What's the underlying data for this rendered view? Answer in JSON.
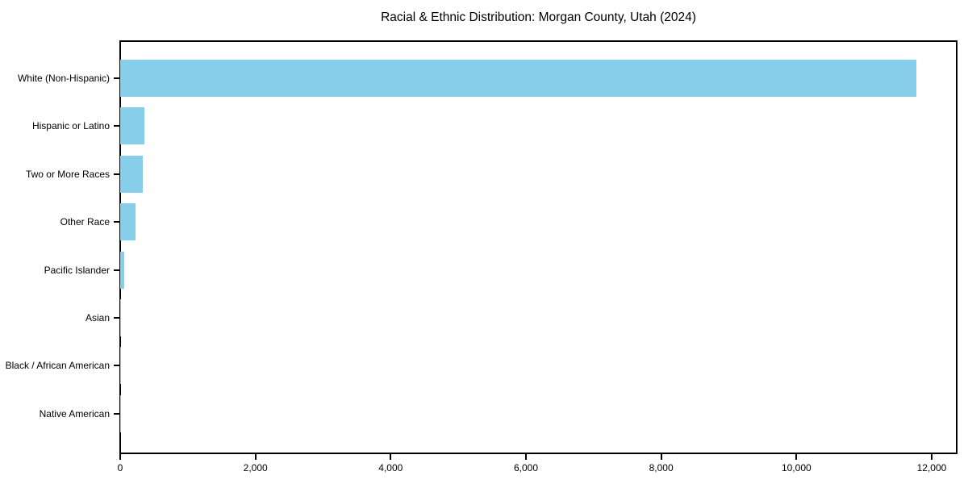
{
  "chart_data": {
    "type": "bar",
    "orientation": "horizontal",
    "title": "Racial & Ethnic Distribution: Morgan County, Utah (2024)",
    "categories": [
      "White (Non-Hispanic)",
      "Hispanic or Latino",
      "Two or More Races",
      "Other Race",
      "Pacific Islander",
      "Asian",
      "Black / African American",
      "Native American"
    ],
    "values": [
      11775,
      360,
      330,
      230,
      55,
      15,
      5,
      3
    ],
    "xlabel": "",
    "ylabel": "",
    "xlim": [
      0,
      12370
    ],
    "x_ticks": [
      0,
      2000,
      4000,
      6000,
      8000,
      10000,
      12000
    ],
    "x_tick_labels": [
      "0",
      "2,000",
      "4,000",
      "6,000",
      "8,000",
      "10,000",
      "12,000"
    ],
    "grid": false,
    "legend": null,
    "colors": {
      "bar": "#87CEEB",
      "axis": "#000000",
      "text": "#000000",
      "background": "#ffffff"
    }
  }
}
